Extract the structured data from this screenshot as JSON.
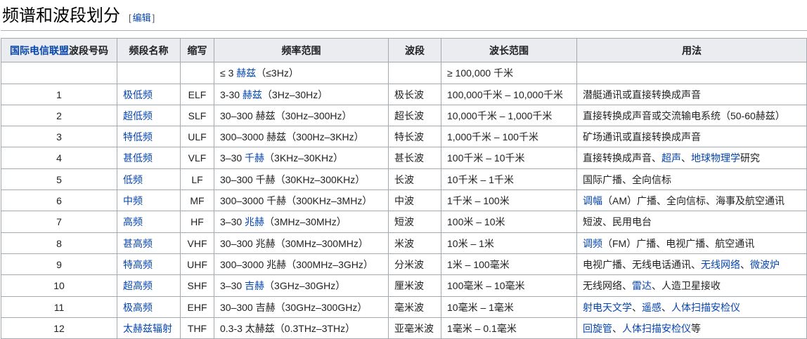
{
  "page": {
    "title": "频谱和波段划分",
    "edit_bracket_open": "[",
    "edit_label": "编辑",
    "edit_bracket_close": "]"
  },
  "colors": {
    "link_blue": "#0645ad",
    "header_bg": "#eaecf0",
    "table_border": "#a2a9b1",
    "bracket_gray": "#54595d"
  },
  "table": {
    "headers": [
      [
        {
          "t": "国际电信联盟",
          "l": true
        },
        {
          "t": "波段号码",
          "l": false
        }
      ],
      [
        {
          "t": "频段名称",
          "l": false
        }
      ],
      [
        {
          "t": "缩写",
          "l": false
        }
      ],
      [
        {
          "t": "频率范围",
          "l": false
        }
      ],
      [
        {
          "t": "波段",
          "l": false
        }
      ],
      [
        {
          "t": "波长范围",
          "l": false
        }
      ],
      [
        {
          "t": "用法",
          "l": false
        }
      ]
    ],
    "rows": [
      {
        "cells": [
          [],
          [],
          [],
          [
            {
              "t": "≤ 3 ",
              "l": false
            },
            {
              "t": "赫兹",
              "l": true
            },
            {
              "t": "（≤3Hz）",
              "l": false
            }
          ],
          [],
          [
            {
              "t": "≥ 100,000 千米",
              "l": false
            }
          ],
          []
        ]
      },
      {
        "cells": [
          [
            {
              "t": "1",
              "l": false
            }
          ],
          [
            {
              "t": "极低频",
              "l": true
            }
          ],
          [
            {
              "t": "ELF",
              "l": false
            }
          ],
          [
            {
              "t": "3-30 ",
              "l": false
            },
            {
              "t": "赫兹",
              "l": true
            },
            {
              "t": "（3Hz–30Hz）",
              "l": false
            }
          ],
          [
            {
              "t": "极长波",
              "l": false
            }
          ],
          [
            {
              "t": "100,000千米 – 10,000千米",
              "l": false
            }
          ],
          [
            {
              "t": "潜艇通讯或直接转换成声音",
              "l": false
            }
          ]
        ]
      },
      {
        "cells": [
          [
            {
              "t": "2",
              "l": false
            }
          ],
          [
            {
              "t": "超低频",
              "l": true
            }
          ],
          [
            {
              "t": "SLF",
              "l": false
            }
          ],
          [
            {
              "t": "30–300 赫兹（30Hz–300Hz）",
              "l": false
            }
          ],
          [
            {
              "t": "超长波",
              "l": false
            }
          ],
          [
            {
              "t": "10,000千米 – 1,000千米",
              "l": false
            }
          ],
          [
            {
              "t": "直接转换成声音或交流输电系统（50-60赫兹）",
              "l": false
            }
          ]
        ]
      },
      {
        "cells": [
          [
            {
              "t": "3",
              "l": false
            }
          ],
          [
            {
              "t": "特低频",
              "l": true
            }
          ],
          [
            {
              "t": "ULF",
              "l": false
            }
          ],
          [
            {
              "t": "300–3000 赫兹（300Hz–3KHz）",
              "l": false
            }
          ],
          [
            {
              "t": "特长波",
              "l": false
            }
          ],
          [
            {
              "t": "1,000千米 – 100千米",
              "l": false
            }
          ],
          [
            {
              "t": "矿场通讯或直接转换成声音",
              "l": false
            }
          ]
        ]
      },
      {
        "cells": [
          [
            {
              "t": "4",
              "l": false
            }
          ],
          [
            {
              "t": "甚低频",
              "l": true
            }
          ],
          [
            {
              "t": "VLF",
              "l": false
            }
          ],
          [
            {
              "t": "3–30 ",
              "l": false
            },
            {
              "t": "千赫",
              "l": true
            },
            {
              "t": "（3KHz–30KHz）",
              "l": false
            }
          ],
          [
            {
              "t": "甚长波",
              "l": false
            }
          ],
          [
            {
              "t": "100千米 – 10千米",
              "l": false
            }
          ],
          [
            {
              "t": "直接转换成声音、",
              "l": false
            },
            {
              "t": "超声",
              "l": true
            },
            {
              "t": "、",
              "l": false
            },
            {
              "t": "地球物理学",
              "l": true
            },
            {
              "t": "研究",
              "l": false
            }
          ]
        ]
      },
      {
        "cells": [
          [
            {
              "t": "5",
              "l": false
            }
          ],
          [
            {
              "t": "低频",
              "l": true
            }
          ],
          [
            {
              "t": "LF",
              "l": false
            }
          ],
          [
            {
              "t": "30–300 千赫（30KHz–300KHz）",
              "l": false
            }
          ],
          [
            {
              "t": "长波",
              "l": false
            }
          ],
          [
            {
              "t": "10千米 – 1千米",
              "l": false
            }
          ],
          [
            {
              "t": "国际广播、全向信标",
              "l": false
            }
          ]
        ]
      },
      {
        "cells": [
          [
            {
              "t": "6",
              "l": false
            }
          ],
          [
            {
              "t": "中频",
              "l": true
            }
          ],
          [
            {
              "t": "MF",
              "l": false
            }
          ],
          [
            {
              "t": "300–3000 千赫（300KHz–3MHz）",
              "l": false
            }
          ],
          [
            {
              "t": "中波",
              "l": false
            }
          ],
          [
            {
              "t": "1千米 – 100米",
              "l": false
            }
          ],
          [
            {
              "t": "调幅",
              "l": true
            },
            {
              "t": "（AM）广播、全向信标、海事及航空通讯",
              "l": false
            }
          ]
        ]
      },
      {
        "cells": [
          [
            {
              "t": "7",
              "l": false
            }
          ],
          [
            {
              "t": "高频",
              "l": true
            }
          ],
          [
            {
              "t": "HF",
              "l": false
            }
          ],
          [
            {
              "t": "3–30 ",
              "l": false
            },
            {
              "t": "兆赫",
              "l": true
            },
            {
              "t": "（3MHz–30MHz）",
              "l": false
            }
          ],
          [
            {
              "t": "短波",
              "l": false
            }
          ],
          [
            {
              "t": "100米 – 10米",
              "l": false
            }
          ],
          [
            {
              "t": "短波、民用电台",
              "l": false
            }
          ]
        ]
      },
      {
        "cells": [
          [
            {
              "t": "8",
              "l": false
            }
          ],
          [
            {
              "t": "甚高频",
              "l": true
            }
          ],
          [
            {
              "t": "VHF",
              "l": false
            }
          ],
          [
            {
              "t": "30–300 兆赫（30MHz–300MHz）",
              "l": false
            }
          ],
          [
            {
              "t": "米波",
              "l": false
            }
          ],
          [
            {
              "t": "10米 – 1米",
              "l": false
            }
          ],
          [
            {
              "t": "调频",
              "l": true
            },
            {
              "t": "（FM）广播、电视广播、航空通讯",
              "l": false
            }
          ]
        ]
      },
      {
        "cells": [
          [
            {
              "t": "9",
              "l": false
            }
          ],
          [
            {
              "t": "特高频",
              "l": true
            }
          ],
          [
            {
              "t": "UHF",
              "l": false
            }
          ],
          [
            {
              "t": "300–3000 兆赫（300MHz–3GHz）",
              "l": false
            }
          ],
          [
            {
              "t": "分米波",
              "l": false
            }
          ],
          [
            {
              "t": "1米 – 100毫米",
              "l": false
            }
          ],
          [
            {
              "t": "电视广播、无线电话通讯、",
              "l": false
            },
            {
              "t": "无线网络",
              "l": true
            },
            {
              "t": "、",
              "l": false
            },
            {
              "t": "微波炉",
              "l": true
            }
          ]
        ]
      },
      {
        "cells": [
          [
            {
              "t": "10",
              "l": false
            }
          ],
          [
            {
              "t": "超高频",
              "l": true
            }
          ],
          [
            {
              "t": "SHF",
              "l": false
            }
          ],
          [
            {
              "t": "3–30 ",
              "l": false
            },
            {
              "t": "吉赫",
              "l": true
            },
            {
              "t": "（3GHz–30GHz）",
              "l": false
            }
          ],
          [
            {
              "t": "厘米波",
              "l": false
            }
          ],
          [
            {
              "t": "100毫米 – 10毫米",
              "l": false
            }
          ],
          [
            {
              "t": "无线网络、",
              "l": false
            },
            {
              "t": "雷达",
              "l": true
            },
            {
              "t": "、人造卫星接收",
              "l": false
            }
          ]
        ]
      },
      {
        "cells": [
          [
            {
              "t": "11",
              "l": false
            }
          ],
          [
            {
              "t": "极高频",
              "l": true
            }
          ],
          [
            {
              "t": "EHF",
              "l": false
            }
          ],
          [
            {
              "t": "30–300 吉赫（30GHz–300GHz）",
              "l": false
            }
          ],
          [
            {
              "t": "毫米波",
              "l": false
            }
          ],
          [
            {
              "t": "10毫米 – 1毫米",
              "l": false
            }
          ],
          [
            {
              "t": "射电天文学",
              "l": true
            },
            {
              "t": "、",
              "l": false
            },
            {
              "t": "遥感",
              "l": true
            },
            {
              "t": "、",
              "l": false
            },
            {
              "t": "人体扫描安检仪",
              "l": true
            }
          ]
        ]
      },
      {
        "cells": [
          [
            {
              "t": "12",
              "l": false
            }
          ],
          [
            {
              "t": "太赫兹辐射",
              "l": true
            }
          ],
          [
            {
              "t": "THF",
              "l": false
            }
          ],
          [
            {
              "t": "0.3-3 太赫兹（0.3THz–3THz）",
              "l": false
            }
          ],
          [
            {
              "t": "亚毫米波",
              "l": false
            }
          ],
          [
            {
              "t": "1毫米 – 0.1毫米",
              "l": false
            }
          ],
          [
            {
              "t": "回旋管",
              "l": true
            },
            {
              "t": "、",
              "l": false
            },
            {
              "t": "人体扫描安检仪",
              "l": true
            },
            {
              "t": "等",
              "l": false
            }
          ]
        ]
      }
    ]
  }
}
